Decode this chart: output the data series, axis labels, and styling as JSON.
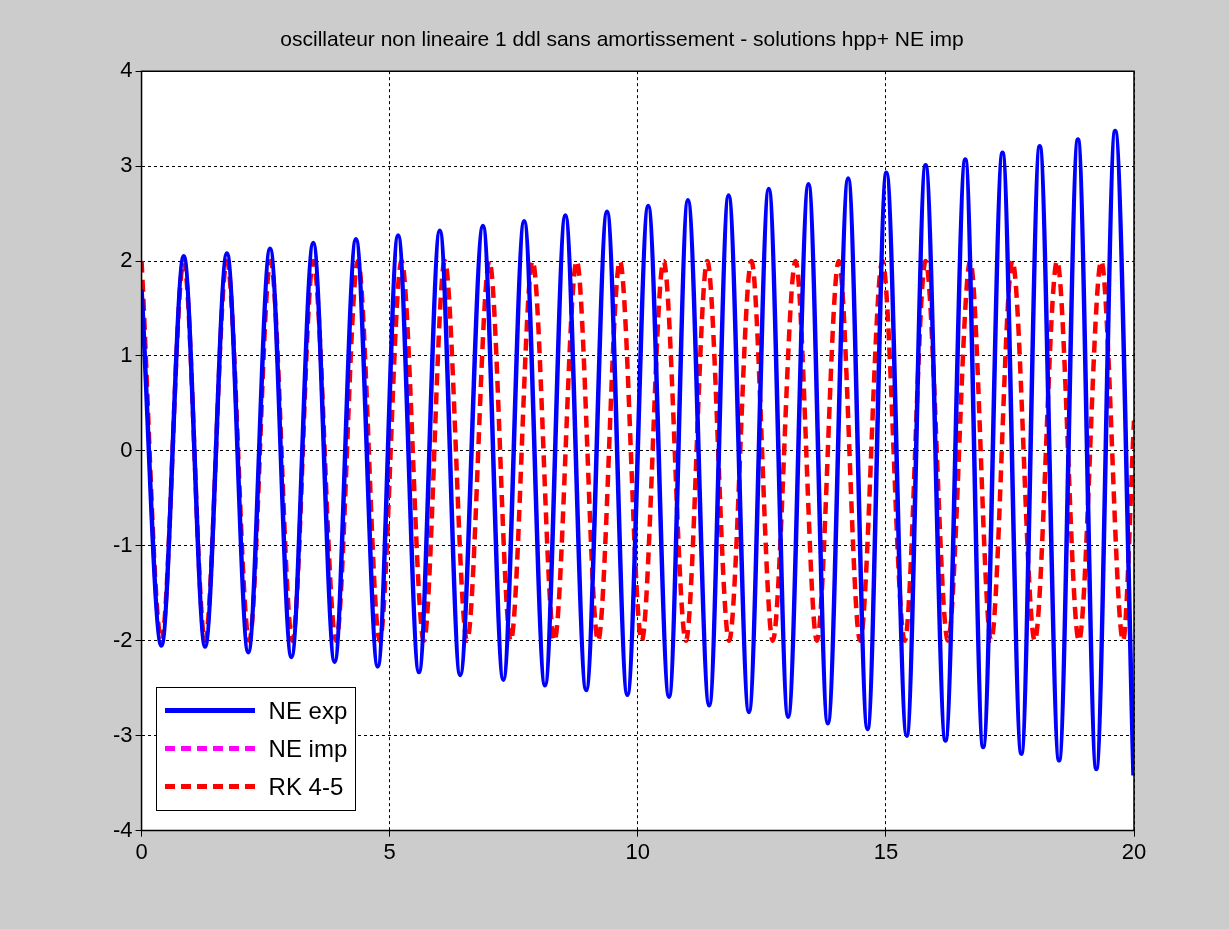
{
  "chart_data": {
    "type": "line",
    "title": "oscillateur non lineaire 1 ddl sans amortissement - solutions hpp+ NE imp",
    "xlim": [
      0,
      20
    ],
    "xticks": [
      0,
      5,
      10,
      15,
      20
    ],
    "ylim": [
      -4,
      4
    ],
    "yticks": [
      -4,
      -3,
      -2,
      -1,
      0,
      1,
      2,
      3,
      4
    ],
    "grid": true,
    "legend": "bottom left",
    "marker": "none",
    "series": [
      {
        "name": "NE exp",
        "color": "#0000ff",
        "line_style": "solid",
        "x": [
          0,
          0.4,
          0.85,
          1.28,
          1.72,
          2.15,
          2.59,
          3.02,
          3.46,
          3.89,
          4.32,
          4.76,
          5.17,
          5.59,
          6.01,
          6.42,
          6.88,
          7.29,
          7.71,
          8.13,
          8.54,
          8.96,
          9.38,
          9.79,
          10.21,
          10.63,
          11.01,
          11.44,
          11.83,
          12.24,
          12.64,
          13.03,
          13.44,
          13.83,
          14.24,
          14.63,
          15.01,
          15.42,
          15.8,
          16.2,
          16.6,
          16.96,
          17.35,
          17.73,
          18.1,
          18.49,
          18.87,
          19.24,
          19.62,
          19.99
        ],
        "values": [
          1.7,
          -2.05,
          2.05,
          -2.06,
          2.08,
          -2.12,
          2.13,
          -2.17,
          2.19,
          -2.22,
          2.23,
          -2.27,
          2.27,
          -2.33,
          2.32,
          -2.36,
          2.37,
          -2.41,
          2.42,
          -2.47,
          2.48,
          -2.52,
          2.52,
          -2.57,
          2.58,
          -2.59,
          2.64,
          -2.68,
          2.69,
          -2.75,
          2.76,
          -2.8,
          2.81,
          -2.87,
          2.87,
          -2.93,
          2.93,
          -3.0,
          3.01,
          -3.05,
          3.07,
          -3.12,
          3.14,
          -3.19,
          3.21,
          -3.26,
          3.28,
          -3.35,
          3.37,
          -3.42
        ]
      },
      {
        "name": "NE imp",
        "color": "#ff00ff",
        "line_style": "dashed"
      },
      {
        "name": "RK 4-5",
        "color": "#ff0000",
        "line_style": "dashed",
        "x": [
          0,
          0.4,
          0.85,
          1.28,
          1.72,
          2.17,
          2.6,
          3.04,
          3.46,
          3.92,
          4.36,
          4.8,
          5.24,
          5.69,
          6.11,
          6.56,
          7.01,
          7.44,
          7.88,
          8.32,
          8.77,
          9.2,
          9.64,
          10.08,
          10.52,
          10.97,
          11.4,
          11.84,
          12.29,
          12.72,
          13.18,
          13.61,
          14.05,
          14.48,
          14.93,
          15.38,
          15.8,
          16.25,
          16.7,
          17.12,
          17.55,
          18.0,
          18.45,
          18.89,
          19.34,
          19.78,
          20
        ],
        "values": [
          2,
          -2,
          2,
          -2,
          2,
          -2,
          2,
          -2,
          2,
          -2,
          2,
          -2,
          2,
          -2,
          2,
          -2,
          2,
          -2,
          2,
          -2,
          2,
          -2,
          2,
          -2,
          2,
          -2,
          2,
          -2,
          2,
          -2,
          2,
          -2,
          2,
          -2,
          2,
          -2,
          2,
          -2,
          2,
          -2,
          2,
          -2,
          2,
          -2,
          2,
          -2,
          0.32
        ]
      }
    ]
  }
}
